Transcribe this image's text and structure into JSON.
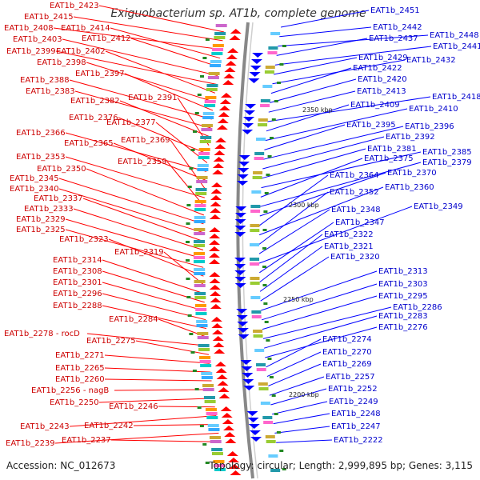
{
  "title": "Exiguobacterium sp. AT1b, complete genome",
  "footer": {
    "accession": "Accession: NC_012673",
    "topology": "Topology: circular; Length: 2,999,895 bp; Genes: 3,115"
  },
  "colors": {
    "forward": "#ff0000",
    "reverse": "#0000ff",
    "left_label": "#cc0000",
    "right_label": "#0000cc",
    "backbone": "#888888"
  },
  "scale_labels": [
    "2350 kbp",
    "2300 kbp",
    "2250 kbp",
    "2200 kbp"
  ],
  "left_labels": [
    "EAT1b_2423",
    "EAT1b_2415",
    "EAT1b_2408",
    "EAT1b_2414",
    "EAT1b_2412",
    "EAT1b_2403",
    "EAT1b_2399",
    "EAT1b_2402",
    "EAT1b_2398",
    "EAT1b_2397",
    "EAT1b_2388",
    "EAT1b_2383",
    "EAT1b_2382",
    "EAT1b_2391",
    "EAT1b_2376",
    "EAT1b_2377",
    "EAT1b_2366",
    "EAT1b_2365",
    "EAT1b_2369",
    "EAT1b_2353",
    "EAT1b_2359",
    "EAT1b_2350",
    "EAT1b_2345",
    "EAT1b_2340",
    "EAT1b_2337",
    "EAT1b_2333",
    "EAT1b_2329",
    "EAT1b_2325",
    "EAT1b_2323",
    "EAT1b_2319",
    "EAT1b_2314",
    "EAT1b_2308",
    "EAT1b_2301",
    "EAT1b_2296",
    "EAT1b_2288",
    "EAT1b_2284",
    "EAT1b_2278 - rocD",
    "EAT1b_2275",
    "EAT1b_2271",
    "EAT1b_2265",
    "EAT1b_2260",
    "EAT1b_2256 - nagB",
    "EAT1b_2250",
    "EAT1b_2246",
    "EAT1b_2243",
    "EAT1b_2242",
    "EAT1b_2239",
    "EAT1b_2237"
  ],
  "right_labels": [
    "EAT1b_2451",
    "EAT1b_2442",
    "EAT1b_2448",
    "EAT1b_2437",
    "EAT1b_2441",
    "EAT1b_2429",
    "EAT1b_2432",
    "EAT1b_2422",
    "EAT1b_2420",
    "EAT1b_2413",
    "EAT1b_2418",
    "EAT1b_2409",
    "EAT1b_2410",
    "EAT1b_2395",
    "EAT1b_2396",
    "EAT1b_2392",
    "EAT1b_2381",
    "EAT1b_2385",
    "EAT1b_2375",
    "EAT1b_2379",
    "EAT1b_2370",
    "EAT1b_2364",
    "EAT1b_2360",
    "EAT1b_2352",
    "EAT1b_2348",
    "EAT1b_2349",
    "EAT1b_2347",
    "EAT1b_2322",
    "EAT1b_2321",
    "EAT1b_2320",
    "EAT1b_2313",
    "EAT1b_2303",
    "EAT1b_2295",
    "EAT1b_2286",
    "EAT1b_2283",
    "EAT1b_2276",
    "EAT1b_2274",
    "EAT1b_2270",
    "EAT1b_2269",
    "EAT1b_2257",
    "EAT1b_2252",
    "EAT1b_2249",
    "EAT1b_2248",
    "EAT1b_2247",
    "EAT1b_2222"
  ]
}
